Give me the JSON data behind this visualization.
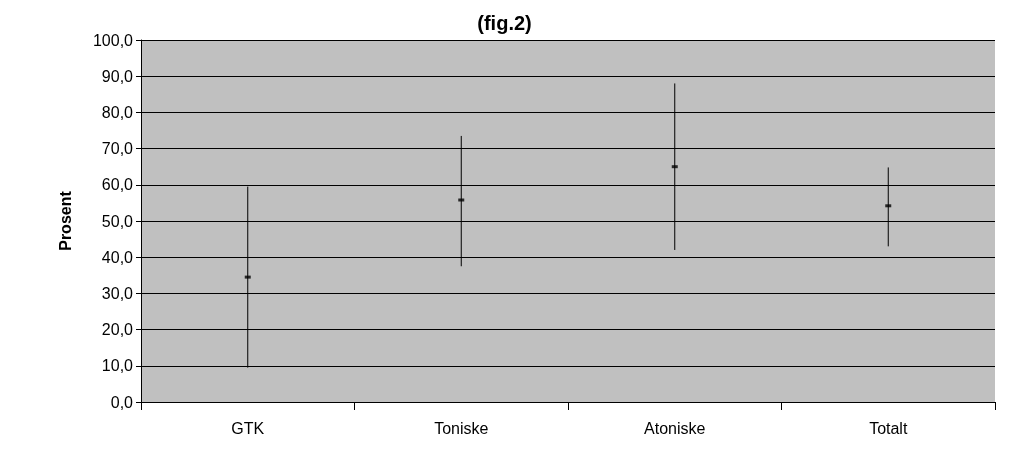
{
  "chart_data": {
    "type": "scatter",
    "title": "(fig.2)",
    "ylabel": "Prosent",
    "categories": [
      "GTK",
      "Toniske",
      "Atoniske",
      "Totalt"
    ],
    "series": [
      {
        "color": "#000000",
        "values": [
          34.5,
          55.8,
          65.0,
          54.2
        ],
        "errors": [
          [
            9.5,
            59.5
          ],
          [
            37.5,
            73.5
          ],
          [
            42.0,
            88.0
          ],
          [
            43.0,
            64.8
          ]
        ]
      }
    ],
    "ylim": [
      0,
      100
    ],
    "yticks": [
      {
        "value": 0,
        "label": "0,0"
      },
      {
        "value": 10,
        "label": "10,0"
      },
      {
        "value": 20,
        "label": "20,0"
      },
      {
        "value": 30,
        "label": "30,0"
      },
      {
        "value": 40,
        "label": "40,0"
      },
      {
        "value": 50,
        "label": "50,0"
      },
      {
        "value": 60,
        "label": "60,0"
      },
      {
        "value": 70,
        "label": "70,0"
      },
      {
        "value": 80,
        "label": "80,0"
      },
      {
        "value": 90,
        "label": "90,0"
      },
      {
        "value": 100,
        "label": "100,0"
      }
    ],
    "grid": "y",
    "marker": "square"
  }
}
